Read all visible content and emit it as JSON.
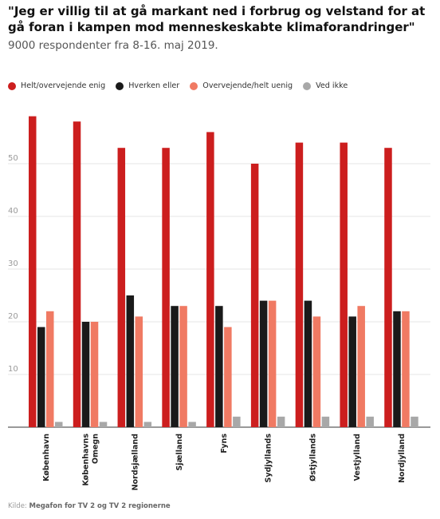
{
  "chart_data": {
    "type": "bar",
    "title": "\"Jeg er villig til at gå markant ned i forbrug og velstand for at gå foran i kampen mod menneskeskabte klimaforandringer\"",
    "subtitle": "9000 respondenter fra 8-16. maj 2019.",
    "categories": [
      "København",
      "Københavns Omegn",
      "Nordsjælland",
      "Sjælland",
      "Fyns",
      "Sydjyllands",
      "Østjyllands",
      "Vestjylland",
      "Nordjylland"
    ],
    "category_lines": [
      [
        "København"
      ],
      [
        "Københavns",
        "Omegn"
      ],
      [
        "Nordsjælland"
      ],
      [
        "Sjælland"
      ],
      [
        "Fyns"
      ],
      [
        "Sydjyllands"
      ],
      [
        "Østjyllands"
      ],
      [
        "Vestjylland"
      ],
      [
        "Nordjylland"
      ]
    ],
    "series": [
      {
        "name": "Helt/overvejende enig",
        "color": "#cc1e1e",
        "values": [
          59,
          58,
          53,
          53,
          56,
          50,
          54,
          54,
          53
        ]
      },
      {
        "name": "Hverken eller",
        "color": "#1a1a1a",
        "values": [
          19,
          20,
          25,
          23,
          23,
          24,
          24,
          21,
          22
        ]
      },
      {
        "name": "Overvejende/helt uenig",
        "color": "#f07a63",
        "values": [
          22,
          20,
          21,
          23,
          19,
          24,
          21,
          23,
          22
        ]
      },
      {
        "name": "Ved ikke",
        "color": "#a8a8a8",
        "values": [
          1,
          1,
          1,
          1,
          2,
          2,
          2,
          2,
          2
        ]
      }
    ],
    "ylim": [
      0,
      60
    ],
    "yticks": [
      10,
      20,
      30,
      40,
      50
    ],
    "grid": true,
    "legend_position": "top",
    "xlabel": "",
    "ylabel": ""
  },
  "source": {
    "prefix": "Kilde: ",
    "text": "Megafon for TV 2 og TV 2 regionerne"
  }
}
